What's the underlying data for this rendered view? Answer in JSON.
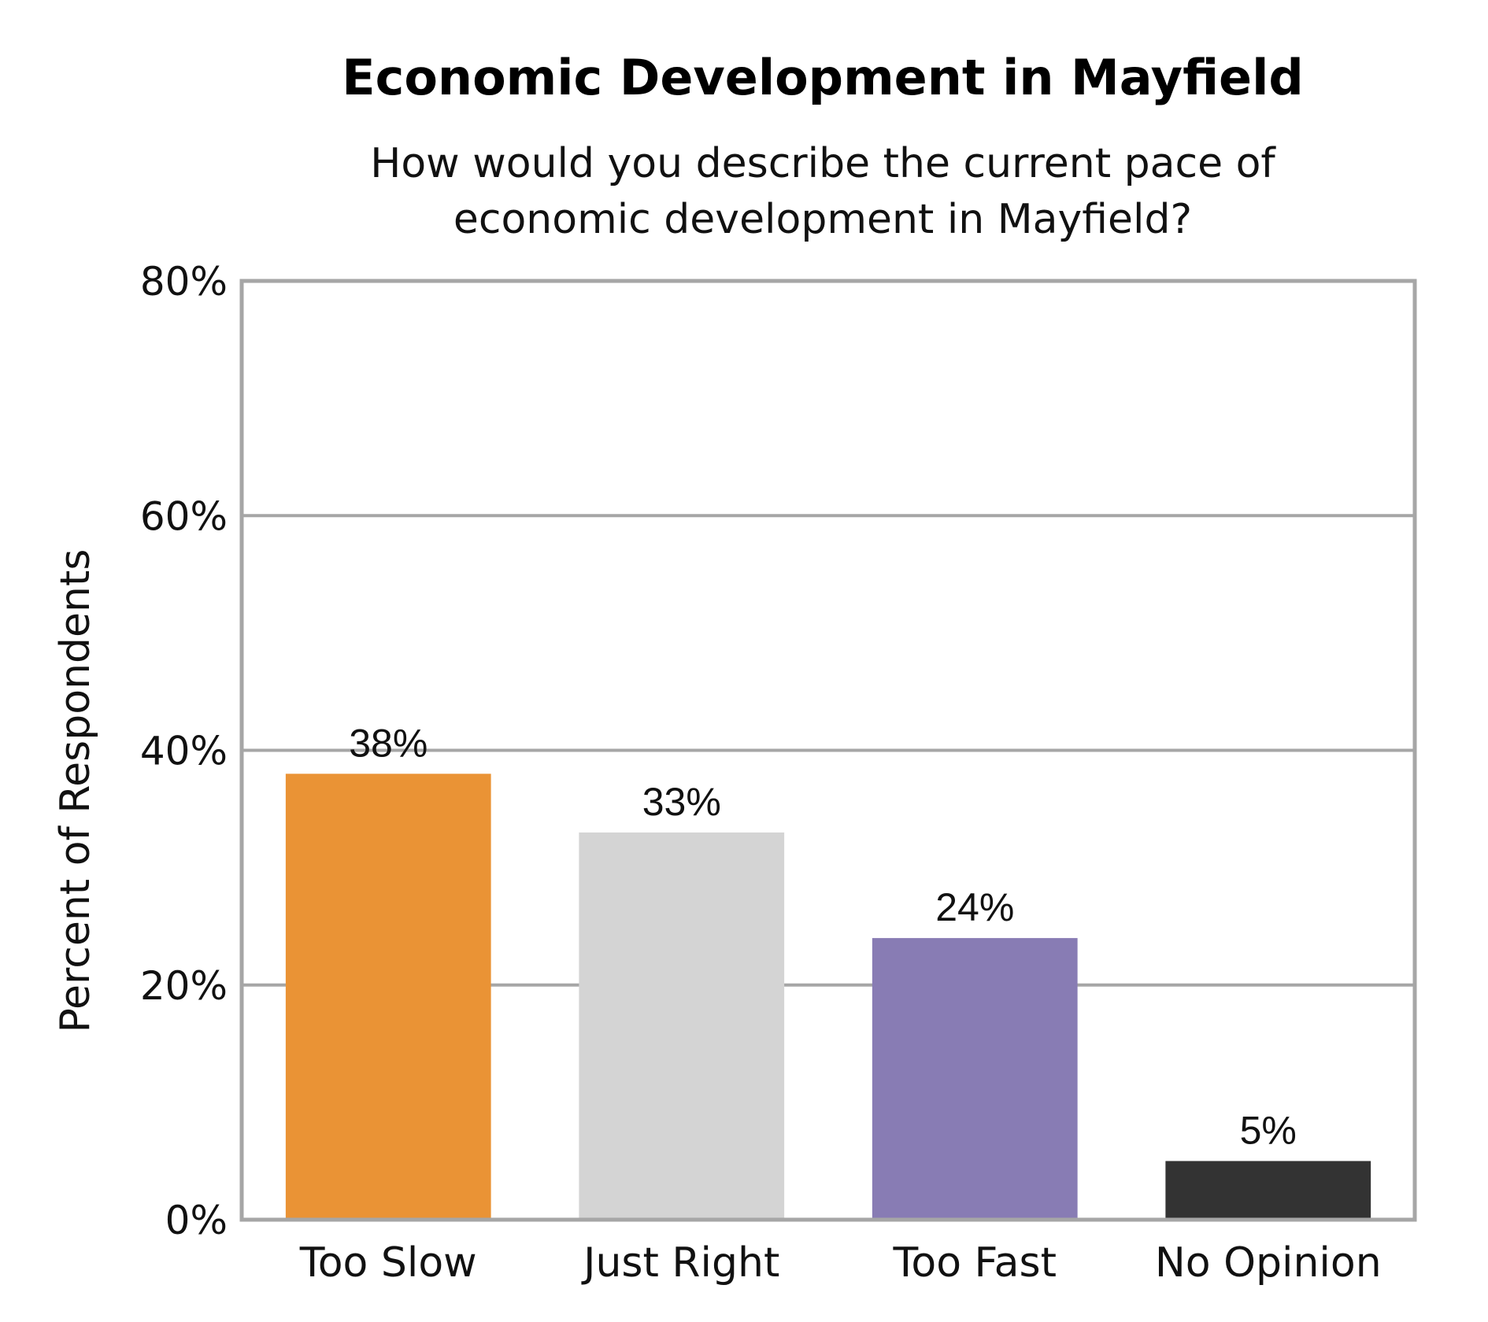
{
  "chart_data": {
    "type": "bar",
    "title": "Economic Development in Mayfield",
    "subtitle": [
      "How would you describe the current pace of",
      "economic development in Mayfield?"
    ],
    "ylabel": "Percent of Respondents",
    "xlabel": "",
    "ylim": [
      0,
      80
    ],
    "yticks": [
      0,
      20,
      40,
      60,
      80
    ],
    "ytick_labels": [
      "0%",
      "20%",
      "40%",
      "60%",
      "80%"
    ],
    "grid": true,
    "legend": "none",
    "categories": [
      "Too Slow",
      "Just Right",
      "Too Fast",
      "No Opinion"
    ],
    "values": [
      38,
      33,
      24,
      5
    ],
    "value_labels": [
      "38%",
      "33%",
      "24%",
      "5%"
    ],
    "colors": [
      "#ea9335",
      "#d4d4d4",
      "#887cb4",
      "#333333"
    ]
  }
}
